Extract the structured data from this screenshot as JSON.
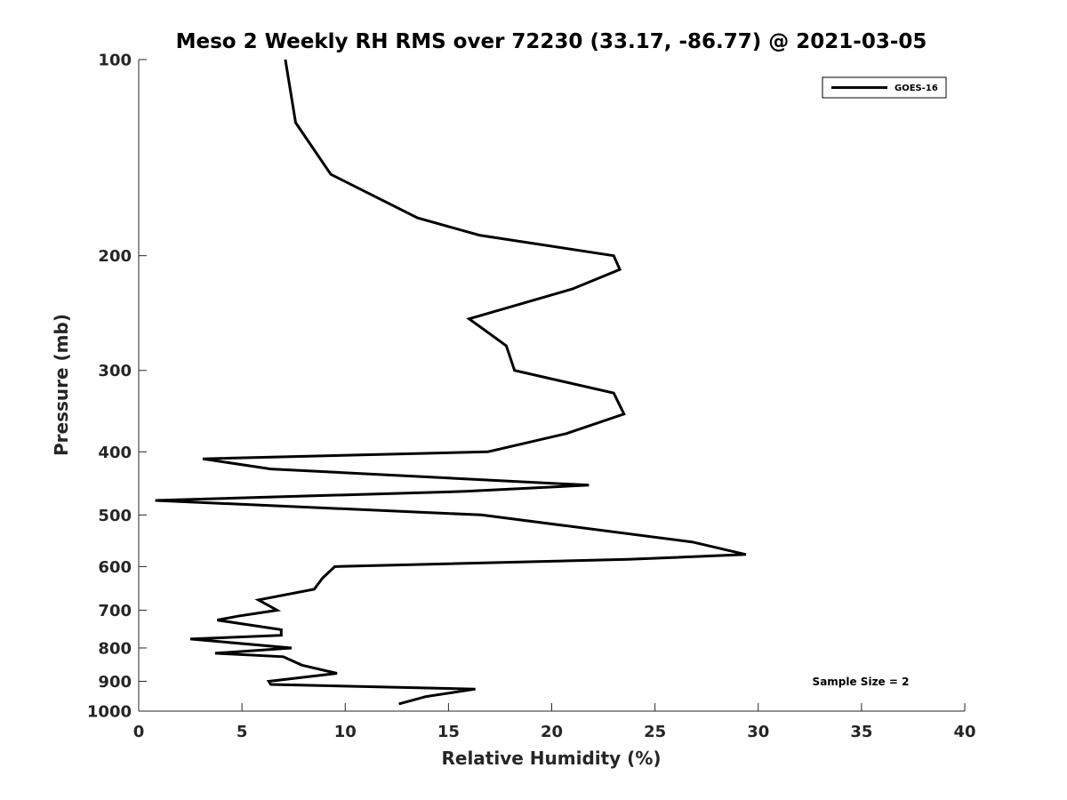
{
  "chart_data": {
    "type": "line",
    "title": "Meso 2 Weekly RH RMS over 72230 (33.17, -86.77) @ 2021-03-05",
    "xlabel": "Relative Humidity (%)",
    "ylabel": "Pressure (mb)",
    "xlim": [
      0,
      40
    ],
    "ylim": [
      100,
      1000
    ],
    "yscale": "log",
    "y_reversed": true,
    "grid": false,
    "legend_position": "top-right",
    "xticks": [
      0,
      5,
      10,
      15,
      20,
      25,
      30,
      35,
      40
    ],
    "xtick_labels": [
      "0",
      "5",
      "10",
      "15",
      "20",
      "25",
      "30",
      "35",
      "40"
    ],
    "yticks": [
      100,
      200,
      300,
      400,
      500,
      600,
      700,
      800,
      900,
      1000
    ],
    "ytick_labels": [
      "100",
      "200",
      "300",
      "400",
      "500",
      "600",
      "700",
      "800",
      "900",
      "1000"
    ],
    "series": [
      {
        "name": "GOES-16",
        "color": "#000000",
        "points": [
          [
            7.1,
            100
          ],
          [
            7.6,
            125
          ],
          [
            9.3,
            150
          ],
          [
            13.5,
            175
          ],
          [
            16.5,
            186
          ],
          [
            23.0,
            200
          ],
          [
            23.3,
            210
          ],
          [
            21.0,
            225
          ],
          [
            16.0,
            250
          ],
          [
            17.8,
            275
          ],
          [
            18.2,
            300
          ],
          [
            23.0,
            325
          ],
          [
            23.5,
            350
          ],
          [
            20.7,
            375
          ],
          [
            16.9,
            400
          ],
          [
            3.1,
            410
          ],
          [
            6.4,
            425
          ],
          [
            21.8,
            450
          ],
          [
            15.8,
            460
          ],
          [
            0.8,
            475
          ],
          [
            16.6,
            500
          ],
          [
            26.8,
            550
          ],
          [
            29.4,
            575
          ],
          [
            23.7,
            585
          ],
          [
            9.5,
            600
          ],
          [
            8.9,
            625
          ],
          [
            8.5,
            650
          ],
          [
            5.8,
            675
          ],
          [
            6.7,
            700
          ],
          [
            4.8,
            715
          ],
          [
            3.8,
            725
          ],
          [
            6.9,
            750
          ],
          [
            6.9,
            765
          ],
          [
            2.5,
            775
          ],
          [
            7.4,
            800
          ],
          [
            3.7,
            815
          ],
          [
            7.0,
            825
          ],
          [
            7.9,
            850
          ],
          [
            9.6,
            875
          ],
          [
            6.3,
            900
          ],
          [
            6.4,
            910
          ],
          [
            16.3,
            925
          ],
          [
            13.9,
            950
          ],
          [
            12.6,
            975
          ]
        ]
      }
    ],
    "annotation": "Sample Size = 2"
  }
}
